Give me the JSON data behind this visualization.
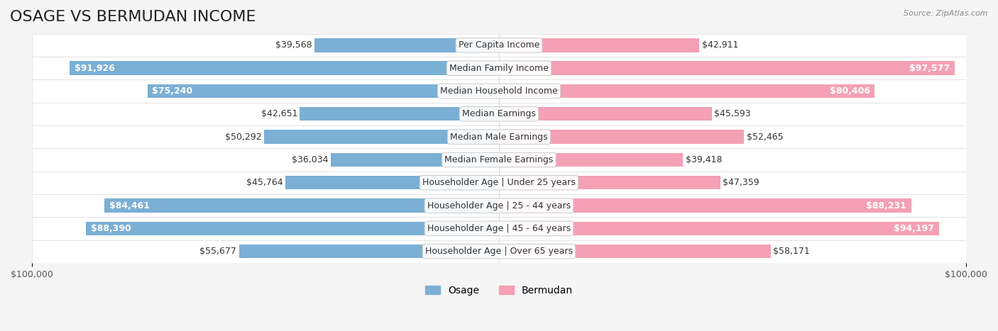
{
  "title": "OSAGE VS BERMUDAN INCOME",
  "source": "Source: ZipAtlas.com",
  "categories": [
    "Per Capita Income",
    "Median Family Income",
    "Median Household Income",
    "Median Earnings",
    "Median Male Earnings",
    "Median Female Earnings",
    "Householder Age | Under 25 years",
    "Householder Age | 25 - 44 years",
    "Householder Age | 45 - 64 years",
    "Householder Age | Over 65 years"
  ],
  "osage_values": [
    39568,
    91926,
    75240,
    42651,
    50292,
    36034,
    45764,
    84461,
    88390,
    55677
  ],
  "bermudan_values": [
    42911,
    97577,
    80406,
    45593,
    52465,
    39418,
    47359,
    88231,
    94197,
    58171
  ],
  "osage_labels": [
    "$39,568",
    "$91,926",
    "$75,240",
    "$42,651",
    "$50,292",
    "$36,034",
    "$45,764",
    "$84,461",
    "$88,390",
    "$55,677"
  ],
  "bermudan_labels": [
    "$42,911",
    "$97,577",
    "$80,406",
    "$45,593",
    "$52,465",
    "$39,418",
    "$47,359",
    "$88,231",
    "$94,197",
    "$58,171"
  ],
  "osage_color": "#7bafd4",
  "osage_color_solid": "#5b9ec9",
  "bermudan_color": "#f4a0b5",
  "bermudan_color_solid": "#e8759a",
  "max_value": 100000,
  "background_color": "#f5f5f5",
  "row_bg_color": "#ffffff",
  "title_fontsize": 16,
  "label_fontsize": 9,
  "axis_fontsize": 9,
  "legend_fontsize": 10,
  "osage_text_threshold": 70000,
  "bermudan_text_threshold": 70000
}
